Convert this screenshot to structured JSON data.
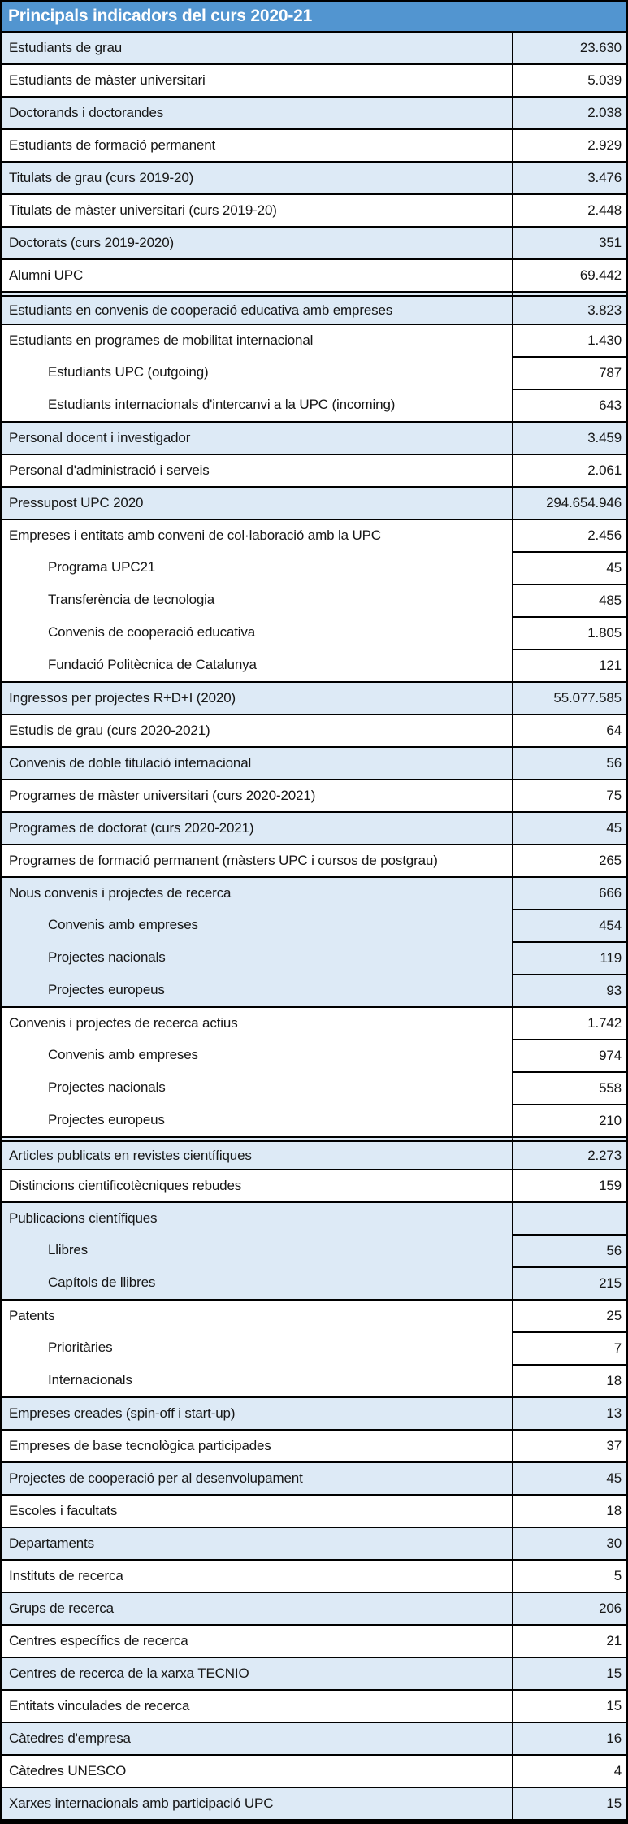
{
  "title": "Principals indicadors del curs 2020-21",
  "colors": {
    "header_bg": "#5295D0",
    "header_text": "#FFFFFF",
    "row_shade_blue": "#DDEAF6",
    "row_shade_white": "#FFFFFF",
    "border": "#000000",
    "text": "#161616"
  },
  "table": {
    "rows": [
      {
        "label": "Estudiants de grau",
        "value": "23.630",
        "shade": "blue",
        "sub": false,
        "separator": "single"
      },
      {
        "label": "Estudiants de màster universitari",
        "value": "5.039",
        "shade": "white",
        "sub": false,
        "separator": "single"
      },
      {
        "label": "Doctorands i doctorandes",
        "value": "2.038",
        "shade": "blue",
        "sub": false,
        "separator": "single"
      },
      {
        "label": "Estudiants de formació permanent",
        "value": "2.929",
        "shade": "white",
        "sub": false,
        "separator": "single"
      },
      {
        "label": "Titulats de grau (curs 2019-20)",
        "value": "3.476",
        "shade": "blue",
        "sub": false,
        "separator": "single"
      },
      {
        "label": "Titulats de màster universitari (curs 2019-20)",
        "value": "2.448",
        "shade": "white",
        "sub": false,
        "separator": "single"
      },
      {
        "label": "Doctorats (curs 2019-2020)",
        "value": "351",
        "shade": "blue",
        "sub": false,
        "separator": "single"
      },
      {
        "label": "Alumni UPC",
        "value": "69.442",
        "shade": "white",
        "sub": false,
        "separator": "single"
      },
      {
        "label": "Estudiants en convenis de cooperació educativa amb empreses",
        "value": "3.823",
        "shade": "blue",
        "sub": false,
        "separator": "double"
      },
      {
        "label": "Estudiants en programes de mobilitat internacional",
        "value": "1.430",
        "shade": "white",
        "sub": false,
        "separator": "single"
      },
      {
        "label": "Estudiants UPC (outgoing)",
        "value": "787",
        "shade": "white",
        "sub": true,
        "separator": "single"
      },
      {
        "label": "Estudiants internacionals d'intercanvi a la UPC (incoming)",
        "value": "643",
        "shade": "white",
        "sub": true,
        "separator": "single"
      },
      {
        "label": "Personal docent i investigador",
        "value": "3.459",
        "shade": "blue",
        "sub": false,
        "separator": "single"
      },
      {
        "label": "Personal d'administració i serveis",
        "value": "2.061",
        "shade": "white",
        "sub": false,
        "separator": "single"
      },
      {
        "label": "Pressupost UPC 2020",
        "value": "294.654.946",
        "shade": "blue",
        "sub": false,
        "separator": "single"
      },
      {
        "label": "Empreses i entitats amb conveni de col·laboració amb la UPC",
        "value": "2.456",
        "shade": "white",
        "sub": false,
        "separator": "single"
      },
      {
        "label": "Programa UPC21",
        "value": "45",
        "shade": "white",
        "sub": true,
        "separator": "single"
      },
      {
        "label": "Transferència de tecnologia",
        "value": "485",
        "shade": "white",
        "sub": true,
        "separator": "single"
      },
      {
        "label": "Convenis de cooperació educativa",
        "value": "1.805",
        "shade": "white",
        "sub": true,
        "separator": "single"
      },
      {
        "label": "Fundació Politècnica de Catalunya",
        "value": "121",
        "shade": "white",
        "sub": true,
        "separator": "single"
      },
      {
        "label": "Ingressos per projectes R+D+I (2020)",
        "value": "55.077.585",
        "shade": "blue",
        "sub": false,
        "separator": "single"
      },
      {
        "label": "Estudis de grau (curs 2020-2021)",
        "value": "64",
        "shade": "white",
        "sub": false,
        "separator": "single"
      },
      {
        "label": "Convenis de doble titulació internacional",
        "value": "56",
        "shade": "blue",
        "sub": false,
        "separator": "single"
      },
      {
        "label": "Programes de màster universitari (curs 2020-2021)",
        "value": "75",
        "shade": "white",
        "sub": false,
        "separator": "single"
      },
      {
        "label": "Programes de doctorat (curs 2020-2021)",
        "value": "45",
        "shade": "blue",
        "sub": false,
        "separator": "single"
      },
      {
        "label": "Programes de formació permanent (màsters UPC i cursos de postgrau)",
        "value": "265",
        "shade": "white",
        "sub": false,
        "separator": "single"
      },
      {
        "label": "Nous convenis i projectes de recerca",
        "value": "666",
        "shade": "blue",
        "sub": false,
        "separator": "single"
      },
      {
        "label": "Convenis amb empreses",
        "value": "454",
        "shade": "blue",
        "sub": true,
        "separator": "single"
      },
      {
        "label": "Projectes nacionals",
        "value": "119",
        "shade": "blue",
        "sub": true,
        "separator": "single"
      },
      {
        "label": "Projectes europeus",
        "value": "93",
        "shade": "blue",
        "sub": true,
        "separator": "single"
      },
      {
        "label": "Convenis i projectes de recerca actius",
        "value": "1.742",
        "shade": "white",
        "sub": false,
        "separator": "single"
      },
      {
        "label": "Convenis amb empreses",
        "value": "974",
        "shade": "white",
        "sub": true,
        "separator": "single"
      },
      {
        "label": "Projectes nacionals",
        "value": "558",
        "shade": "white",
        "sub": true,
        "separator": "single"
      },
      {
        "label": "Projectes europeus",
        "value": "210",
        "shade": "white",
        "sub": true,
        "separator": "single"
      },
      {
        "label": "Articles publicats en revistes científiques",
        "value": "2.273",
        "shade": "blue",
        "sub": false,
        "separator": "double"
      },
      {
        "label": "Distincions cientificotècniques rebudes",
        "value": "159",
        "shade": "white",
        "sub": false,
        "separator": "single"
      },
      {
        "label": "Publicacions científiques",
        "value": "",
        "shade": "blue",
        "sub": false,
        "separator": "single"
      },
      {
        "label": "Llibres",
        "value": "56",
        "shade": "blue",
        "sub": true,
        "separator": "single"
      },
      {
        "label": "Capítols de llibres",
        "value": "215",
        "shade": "blue",
        "sub": true,
        "separator": "single"
      },
      {
        "label": "Patents",
        "value": "25",
        "shade": "white",
        "sub": false,
        "separator": "single"
      },
      {
        "label": "Prioritàries",
        "value": "7",
        "shade": "white",
        "sub": true,
        "separator": "single"
      },
      {
        "label": "Internacionals",
        "value": "18",
        "shade": "white",
        "sub": true,
        "separator": "single"
      },
      {
        "label": "Empreses creades (spin-off i start-up)",
        "value": "13",
        "shade": "blue",
        "sub": false,
        "separator": "single"
      },
      {
        "label": "Empreses de base tecnològica participades",
        "value": "37",
        "shade": "white",
        "sub": false,
        "separator": "single"
      },
      {
        "label": "Projectes de cooperació per al desenvolupament",
        "value": "45",
        "shade": "blue",
        "sub": false,
        "separator": "single"
      },
      {
        "label": "Escoles i facultats",
        "value": "18",
        "shade": "white",
        "sub": false,
        "separator": "single"
      },
      {
        "label": "Departaments",
        "value": "30",
        "shade": "blue",
        "sub": false,
        "separator": "single"
      },
      {
        "label": "Instituts de recerca",
        "value": "5",
        "shade": "white",
        "sub": false,
        "separator": "single"
      },
      {
        "label": "Grups de recerca",
        "value": "206",
        "shade": "blue",
        "sub": false,
        "separator": "single"
      },
      {
        "label": "Centres específics de recerca",
        "value": "21",
        "shade": "white",
        "sub": false,
        "separator": "single"
      },
      {
        "label": "Centres de recerca de la xarxa TECNIO",
        "value": "15",
        "shade": "blue",
        "sub": false,
        "separator": "single"
      },
      {
        "label": "Entitats vinculades de recerca",
        "value": "15",
        "shade": "white",
        "sub": false,
        "separator": "single"
      },
      {
        "label": "Càtedres d'empresa",
        "value": "16",
        "shade": "blue",
        "sub": false,
        "separator": "single"
      },
      {
        "label": "Càtedres UNESCO",
        "value": "4",
        "shade": "white",
        "sub": false,
        "separator": "single"
      },
      {
        "label": "Xarxes internacionals amb participació UPC",
        "value": "15",
        "shade": "blue",
        "sub": false,
        "separator": "single"
      }
    ]
  }
}
